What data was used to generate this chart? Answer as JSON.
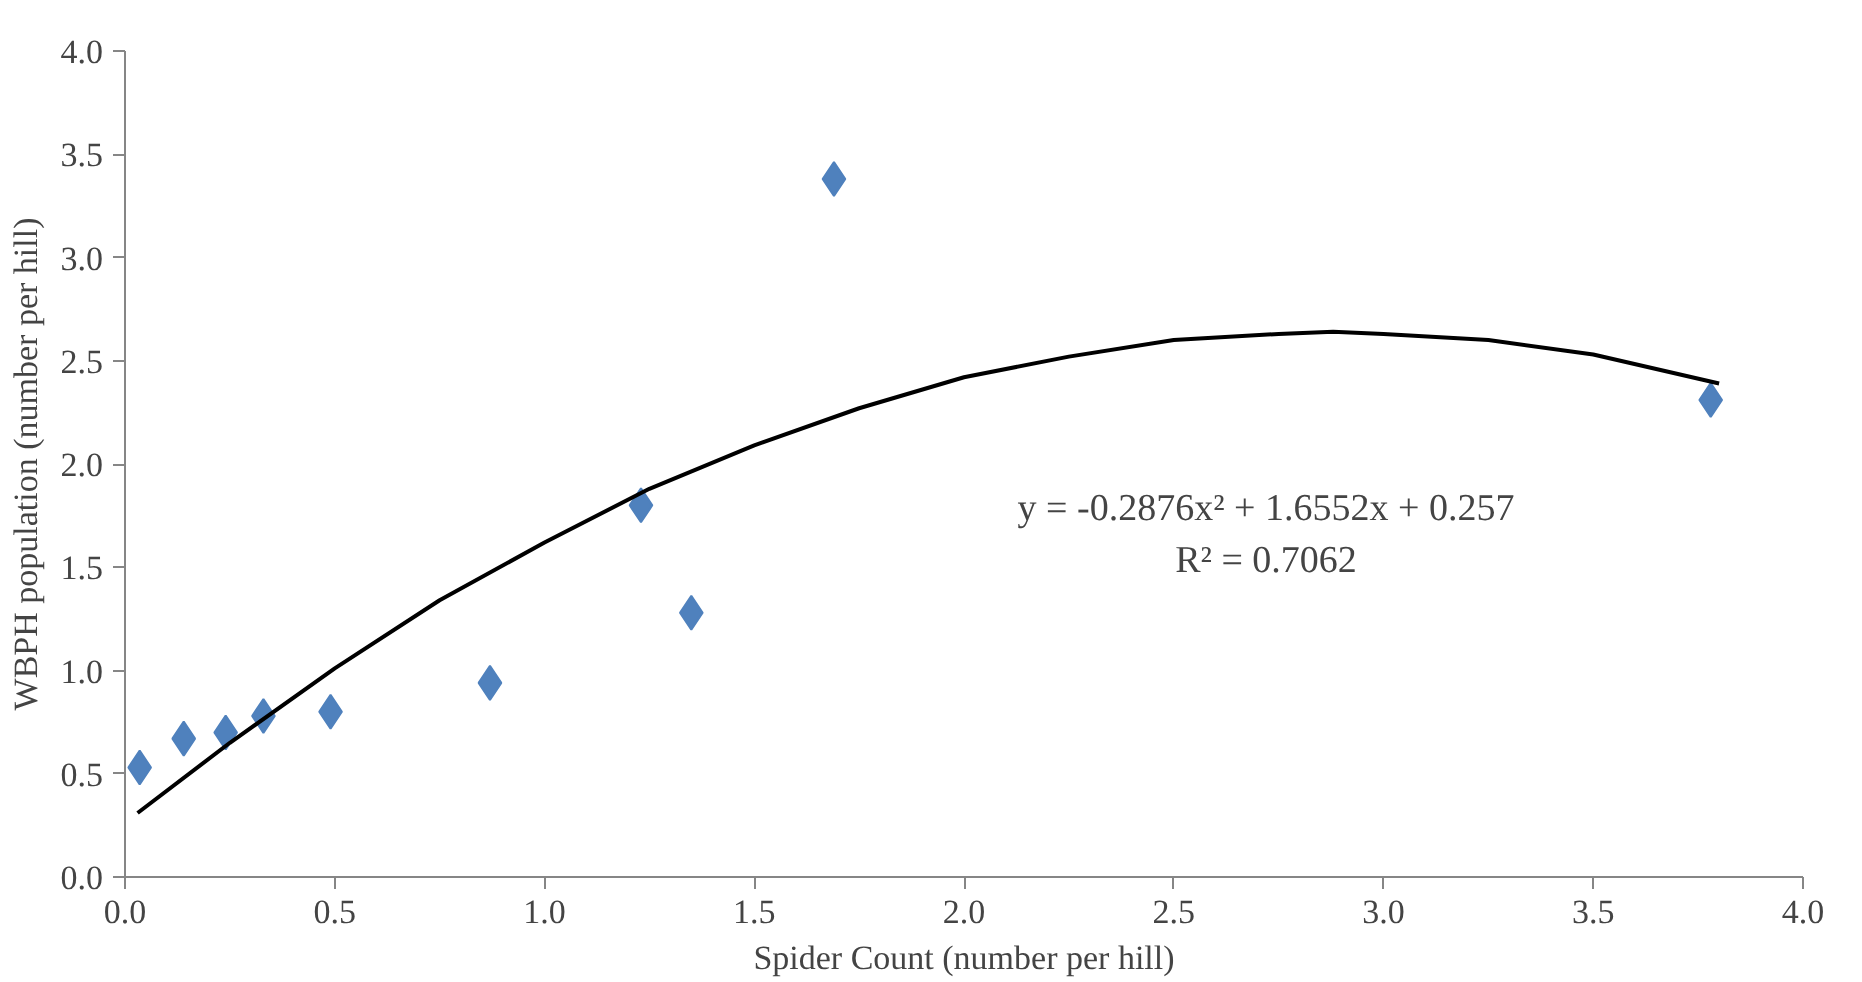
{
  "chart_data": {
    "type": "scatter",
    "xlabel": "Spider Count (number per hill)",
    "ylabel": "WBPH population (number per hill)",
    "xlim": [
      0,
      4
    ],
    "ylim": [
      0,
      4
    ],
    "xticks": [
      {
        "value": 0,
        "label": "0.0"
      },
      0.5,
      {
        "value": 1,
        "label": "1.0"
      },
      1.5,
      {
        "value": 2,
        "label": "2.0"
      },
      2.5,
      {
        "value": 3,
        "label": "3.0"
      },
      3.5,
      {
        "value": 4,
        "label": "4.0"
      }
    ],
    "yticks": [
      {
        "value": 0,
        "label": "0.0"
      },
      0.5,
      {
        "value": 1,
        "label": "1.0"
      },
      1.5,
      {
        "value": 2,
        "label": "2.0"
      },
      2.5,
      {
        "value": 3,
        "label": "3.0"
      },
      3.5,
      {
        "value": 4,
        "label": "4.0"
      }
    ],
    "grid": false,
    "series": [
      {
        "color": "#4f81bd",
        "marker": "diamond",
        "x": [
          0.035,
          0.14,
          0.24,
          0.33,
          0.49,
          0.87,
          1.23,
          1.35,
          1.69,
          3.78
        ],
        "values": [
          0.53,
          0.67,
          0.7,
          0.78,
          0.8,
          0.94,
          1.8,
          1.28,
          3.38,
          2.31
        ]
      },
      {
        "type": "line",
        "color": "#000000",
        "line_style": "solid",
        "x": [
          0.03,
          0.25,
          0.5,
          0.75,
          1.0,
          1.25,
          1.5,
          1.75,
          2.0,
          2.25,
          2.5,
          2.75,
          2.88,
          3.0,
          3.25,
          3.5,
          3.8
        ],
        "values": [
          0.31,
          0.65,
          1.01,
          1.34,
          1.62,
          1.88,
          2.09,
          2.27,
          2.42,
          2.52,
          2.6,
          2.63,
          2.64,
          2.63,
          2.6,
          2.53,
          2.39
        ]
      }
    ],
    "annotations": [
      "y = -0.2876x² + 1.6552x + 0.257",
      "R² = 0.7062"
    ]
  }
}
